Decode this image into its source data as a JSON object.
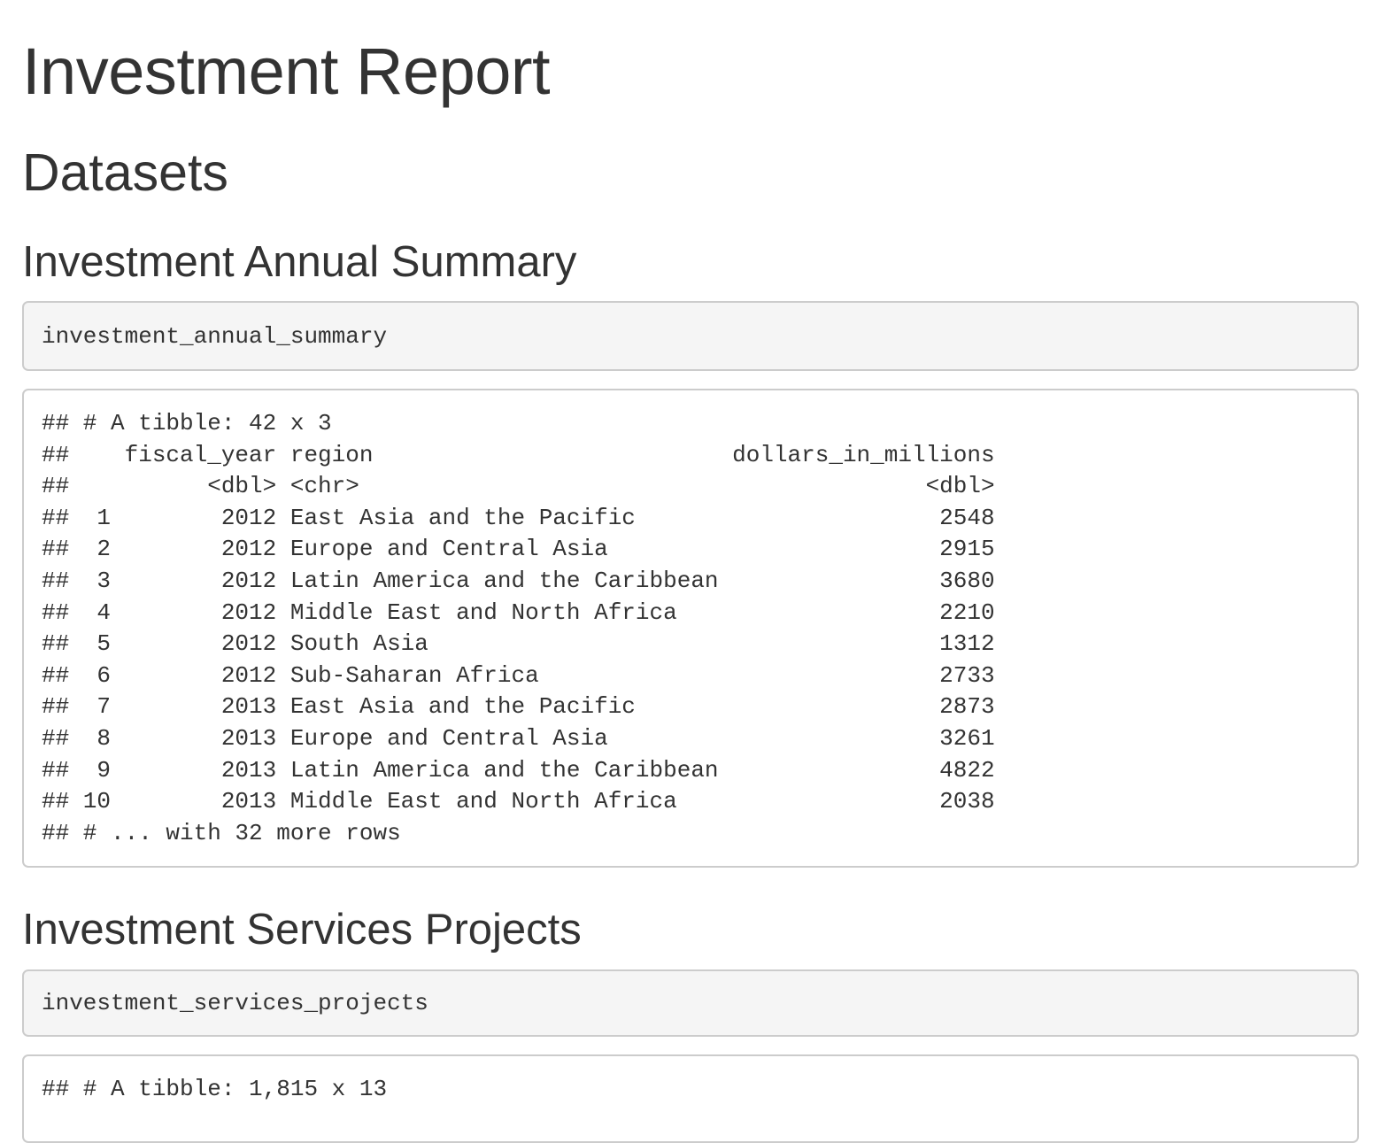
{
  "title": "Investment Report",
  "section_heading": "Datasets",
  "subsections": [
    {
      "heading": "Investment Annual Summary",
      "code": "investment_annual_summary",
      "output_lines": [
        "## # A tibble: 42 x 3",
        "##    fiscal_year region                          dollars_in_millions",
        "##          <dbl> <chr>                                         <dbl>",
        "##  1        2012 East Asia and the Pacific                      2548",
        "##  2        2012 Europe and Central Asia                        2915",
        "##  3        2012 Latin America and the Caribbean                3680",
        "##  4        2012 Middle East and North Africa                   2210",
        "##  5        2012 South Asia                                     1312",
        "##  6        2012 Sub-Saharan Africa                             2733",
        "##  7        2013 East Asia and the Pacific                      2873",
        "##  8        2013 Europe and Central Asia                        3261",
        "##  9        2013 Latin America and the Caribbean                4822",
        "## 10        2013 Middle East and North Africa                   2038",
        "## # ... with 32 more rows"
      ]
    },
    {
      "heading": "Investment Services Projects",
      "code": "investment_services_projects",
      "output_lines": [
        "## # A tibble: 1,815 x 13"
      ]
    }
  ]
}
